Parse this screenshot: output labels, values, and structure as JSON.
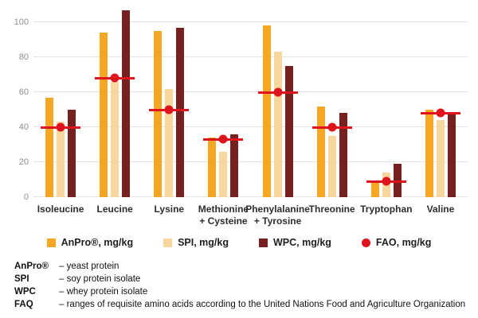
{
  "chart_data": {
    "type": "bar",
    "title": "",
    "xlabel": "",
    "ylabel": "",
    "ylim": [
      0,
      110
    ],
    "yticks": [
      0,
      20,
      40,
      60,
      80,
      100
    ],
    "grid": true,
    "legend_position": "bottom",
    "categories": [
      "Isoleucine",
      "Leucine",
      "Lysine",
      "Methionine\n+ Cysteine",
      "Phenylalanine\n+ Tyrosine",
      "Threonine",
      "Tryptophan",
      "Valine"
    ],
    "series": [
      {
        "key": "anpro",
        "name": "AnPro®, mg/kg",
        "color": "#F5A623",
        "values": [
          57,
          94,
          95,
          34,
          98,
          52,
          9,
          50
        ]
      },
      {
        "key": "spi",
        "name": "SPI, mg/kg",
        "color": "#F8D79E",
        "values": [
          43,
          66,
          62,
          26,
          83,
          35,
          14,
          44
        ]
      },
      {
        "key": "wpc",
        "name": "WPC, mg/kg",
        "color": "#772020",
        "values": [
          50,
          107,
          97,
          36,
          75,
          48,
          19,
          48
        ]
      }
    ],
    "fao": {
      "key": "fao",
      "name": "FAO, mg/kg",
      "color": "#DE131C",
      "values": [
        40,
        68,
        50,
        33,
        60,
        40,
        9,
        48
      ]
    }
  },
  "footer": {
    "notes": [
      {
        "term": "AnPro®",
        "desc": "– yeast protein"
      },
      {
        "term": "SPI",
        "desc": "– soy protein isolate"
      },
      {
        "term": "WPC",
        "desc": "– whey protein isolate"
      },
      {
        "term": "FAQ",
        "desc": "– ranges of requisite amino acids according to the United Nations Food and Agriculture Organization"
      }
    ]
  }
}
